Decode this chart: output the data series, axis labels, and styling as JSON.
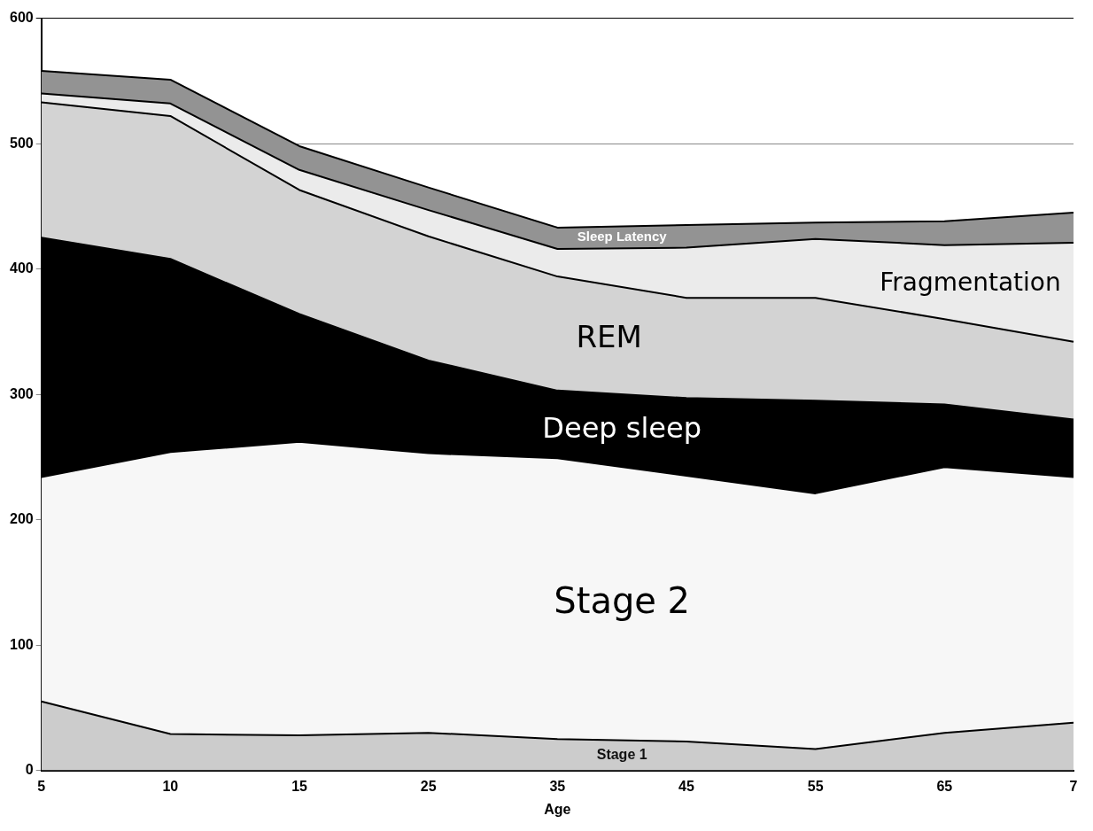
{
  "chart_data": {
    "type": "area",
    "stacked": true,
    "xlabel": "Age",
    "categories": [
      "5",
      "10",
      "15",
      "25",
      "35",
      "45",
      "55",
      "65",
      "7"
    ],
    "ylim": [
      0,
      600
    ],
    "yticks": [
      0,
      100,
      200,
      300,
      400,
      500,
      600
    ],
    "grid": "y",
    "legend": false,
    "series": [
      {
        "name": "Stage 1",
        "color": "#cccccc",
        "values": [
          55,
          29,
          28,
          30,
          25,
          23,
          17,
          30,
          38
        ]
      },
      {
        "name": "Stage 2",
        "color": "#f7f7f7",
        "values": [
          179,
          225,
          234,
          223,
          224,
          212,
          204,
          212,
          196
        ]
      },
      {
        "name": "Deep sleep",
        "color": "#000000",
        "values": [
          191,
          154,
          102,
          74,
          54,
          62,
          74,
          50,
          46
        ]
      },
      {
        "name": "REM",
        "color": "#d3d3d3",
        "values": [
          108,
          114,
          99,
          99,
          91,
          80,
          82,
          68,
          62
        ]
      },
      {
        "name": "Fragmentation",
        "color": "#ebebeb",
        "values": [
          7,
          10,
          16,
          21,
          22,
          40,
          47,
          59,
          79
        ]
      },
      {
        "name": "Sleep Latency",
        "color": "#939393",
        "values": [
          18,
          19,
          19,
          18,
          17,
          18,
          13,
          19,
          24
        ]
      }
    ]
  }
}
